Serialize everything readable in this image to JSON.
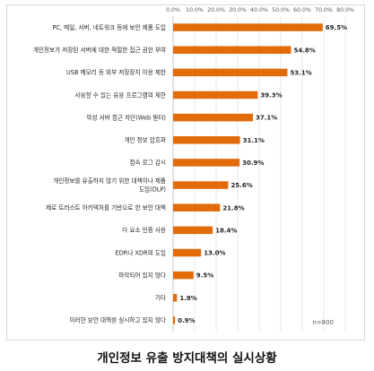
{
  "chart_data": {
    "type": "bar",
    "orientation": "horizontal",
    "categories": [
      "PC, 메일, 서버, 네트워크 등에 보안 제품 도입",
      "개인정보가 저장된 서버에 대한 적절한 접근 권한 부여",
      "USB 메모리 등 외부 저장장치 이용 제한",
      "사용할 수 있는 응용 프로그램의 제한",
      "악성 서버 접근 차단(Web 필터)",
      "개인 정보 암호화",
      "접속 로그 감시",
      "개인정보를 유출하지 않기 위한 대책이나 제품 도입(DLP)",
      "제로 트러스트 아키텍처를 기반으로 한 보안 대책",
      "다 요소 인증 사용",
      "EDR나 XDR의 도입",
      "파악되어 있지 않다",
      "기타",
      "이러한 보안 대책을 실시하고 있지 않다"
    ],
    "category_lines": [
      [
        "PC, 메일, 서버, 네트워크 등에 보안 제품 도입"
      ],
      [
        "개인정보가 저장된 서버에 대한 적절한 접근 권한 부여"
      ],
      [
        "USB 메모리 등 외부 저장장치 이용 제한"
      ],
      [
        "사용할 수 있는 응용 프로그램의 제한"
      ],
      [
        "악성 서버 접근 차단(Web 필터)"
      ],
      [
        "개인 정보 암호화"
      ],
      [
        "접속 로그 감시"
      ],
      [
        "개인정보를 유출하지 않기 위한 대책이나 제품",
        "도입(DLP)"
      ],
      [
        "제로 트러스트 아키텍처를 기반으로 한 보안 대책"
      ],
      [
        "다 요소 인증 사용"
      ],
      [
        "EDR나 XDR의 도입"
      ],
      [
        "파악되어 있지 않다"
      ],
      [
        "기타"
      ],
      [
        "이러한 보안 대책을 실시하고 있지 않다"
      ]
    ],
    "values": [
      69.5,
      54.8,
      53.1,
      39.3,
      37.1,
      31.1,
      30.9,
      25.6,
      21.8,
      18.4,
      13.0,
      9.5,
      1.8,
      0.9
    ],
    "value_labels": [
      "69.5%",
      "54.8%",
      "53.1%",
      "39.3%",
      "37.1%",
      "31.1%",
      "30.9%",
      "25.6%",
      "21.8%",
      "18.4%",
      "13.0%",
      "9.5%",
      "1.8%",
      "0.9%"
    ],
    "xlim": [
      0,
      80
    ],
    "x_ticks": [
      "0.0%",
      "10.0%",
      "20.0%",
      "30.0%",
      "40.0%",
      "50.0%",
      "60.0%",
      "70.0%",
      "80.0%"
    ],
    "grid": true,
    "bar_color": "#e26b0a",
    "note": "n=800"
  },
  "caption": "개인정보 유출 방지대책의 실시상황"
}
